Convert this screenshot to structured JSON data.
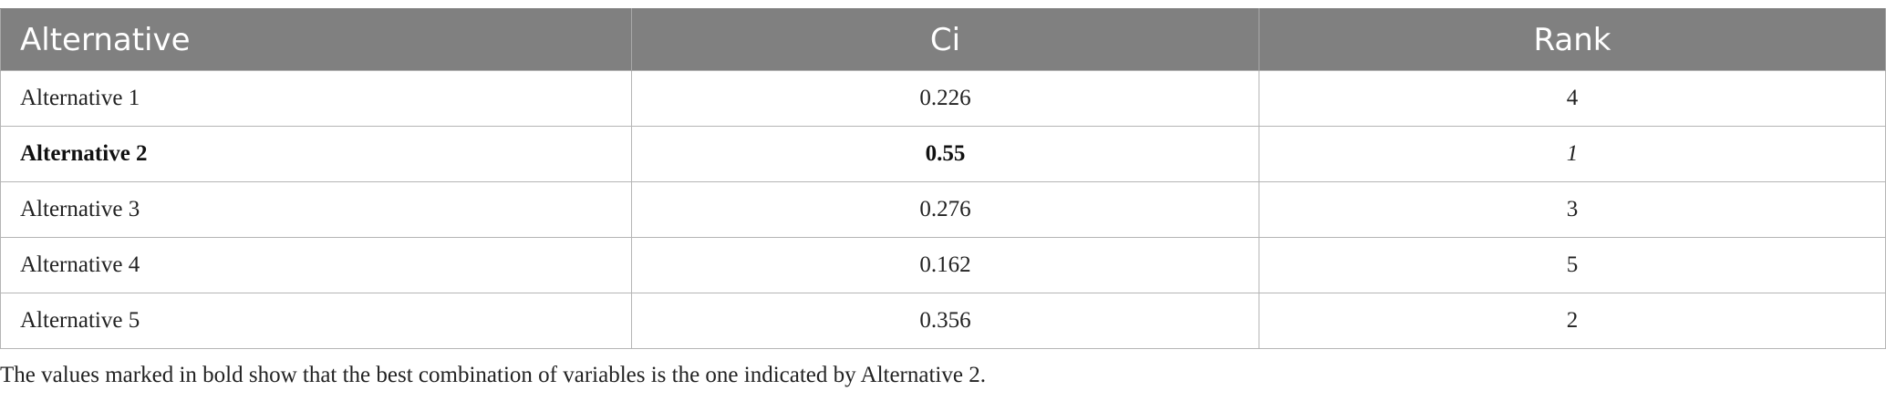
{
  "table": {
    "headers": [
      "Alternative",
      "Ci",
      "Rank"
    ],
    "rows": [
      {
        "alternative": "Alternative 1",
        "ci": "0.226",
        "rank": "4"
      },
      {
        "alternative": "Alternative 2",
        "ci": "0.55",
        "rank": "1"
      },
      {
        "alternative": "Alternative 3",
        "ci": "0.276",
        "rank": "3"
      },
      {
        "alternative": "Alternative 4",
        "ci": "0.162",
        "rank": "5"
      },
      {
        "alternative": "Alternative 5",
        "ci": "0.356",
        "rank": "2"
      }
    ]
  },
  "footnote": "The values marked in bold show that the best combination of variables is the one indicated by Alternative 2.",
  "colors": {
    "header_background": "#808080",
    "header_text": "#ffffff",
    "grid_lines": "#b5b5b5"
  }
}
